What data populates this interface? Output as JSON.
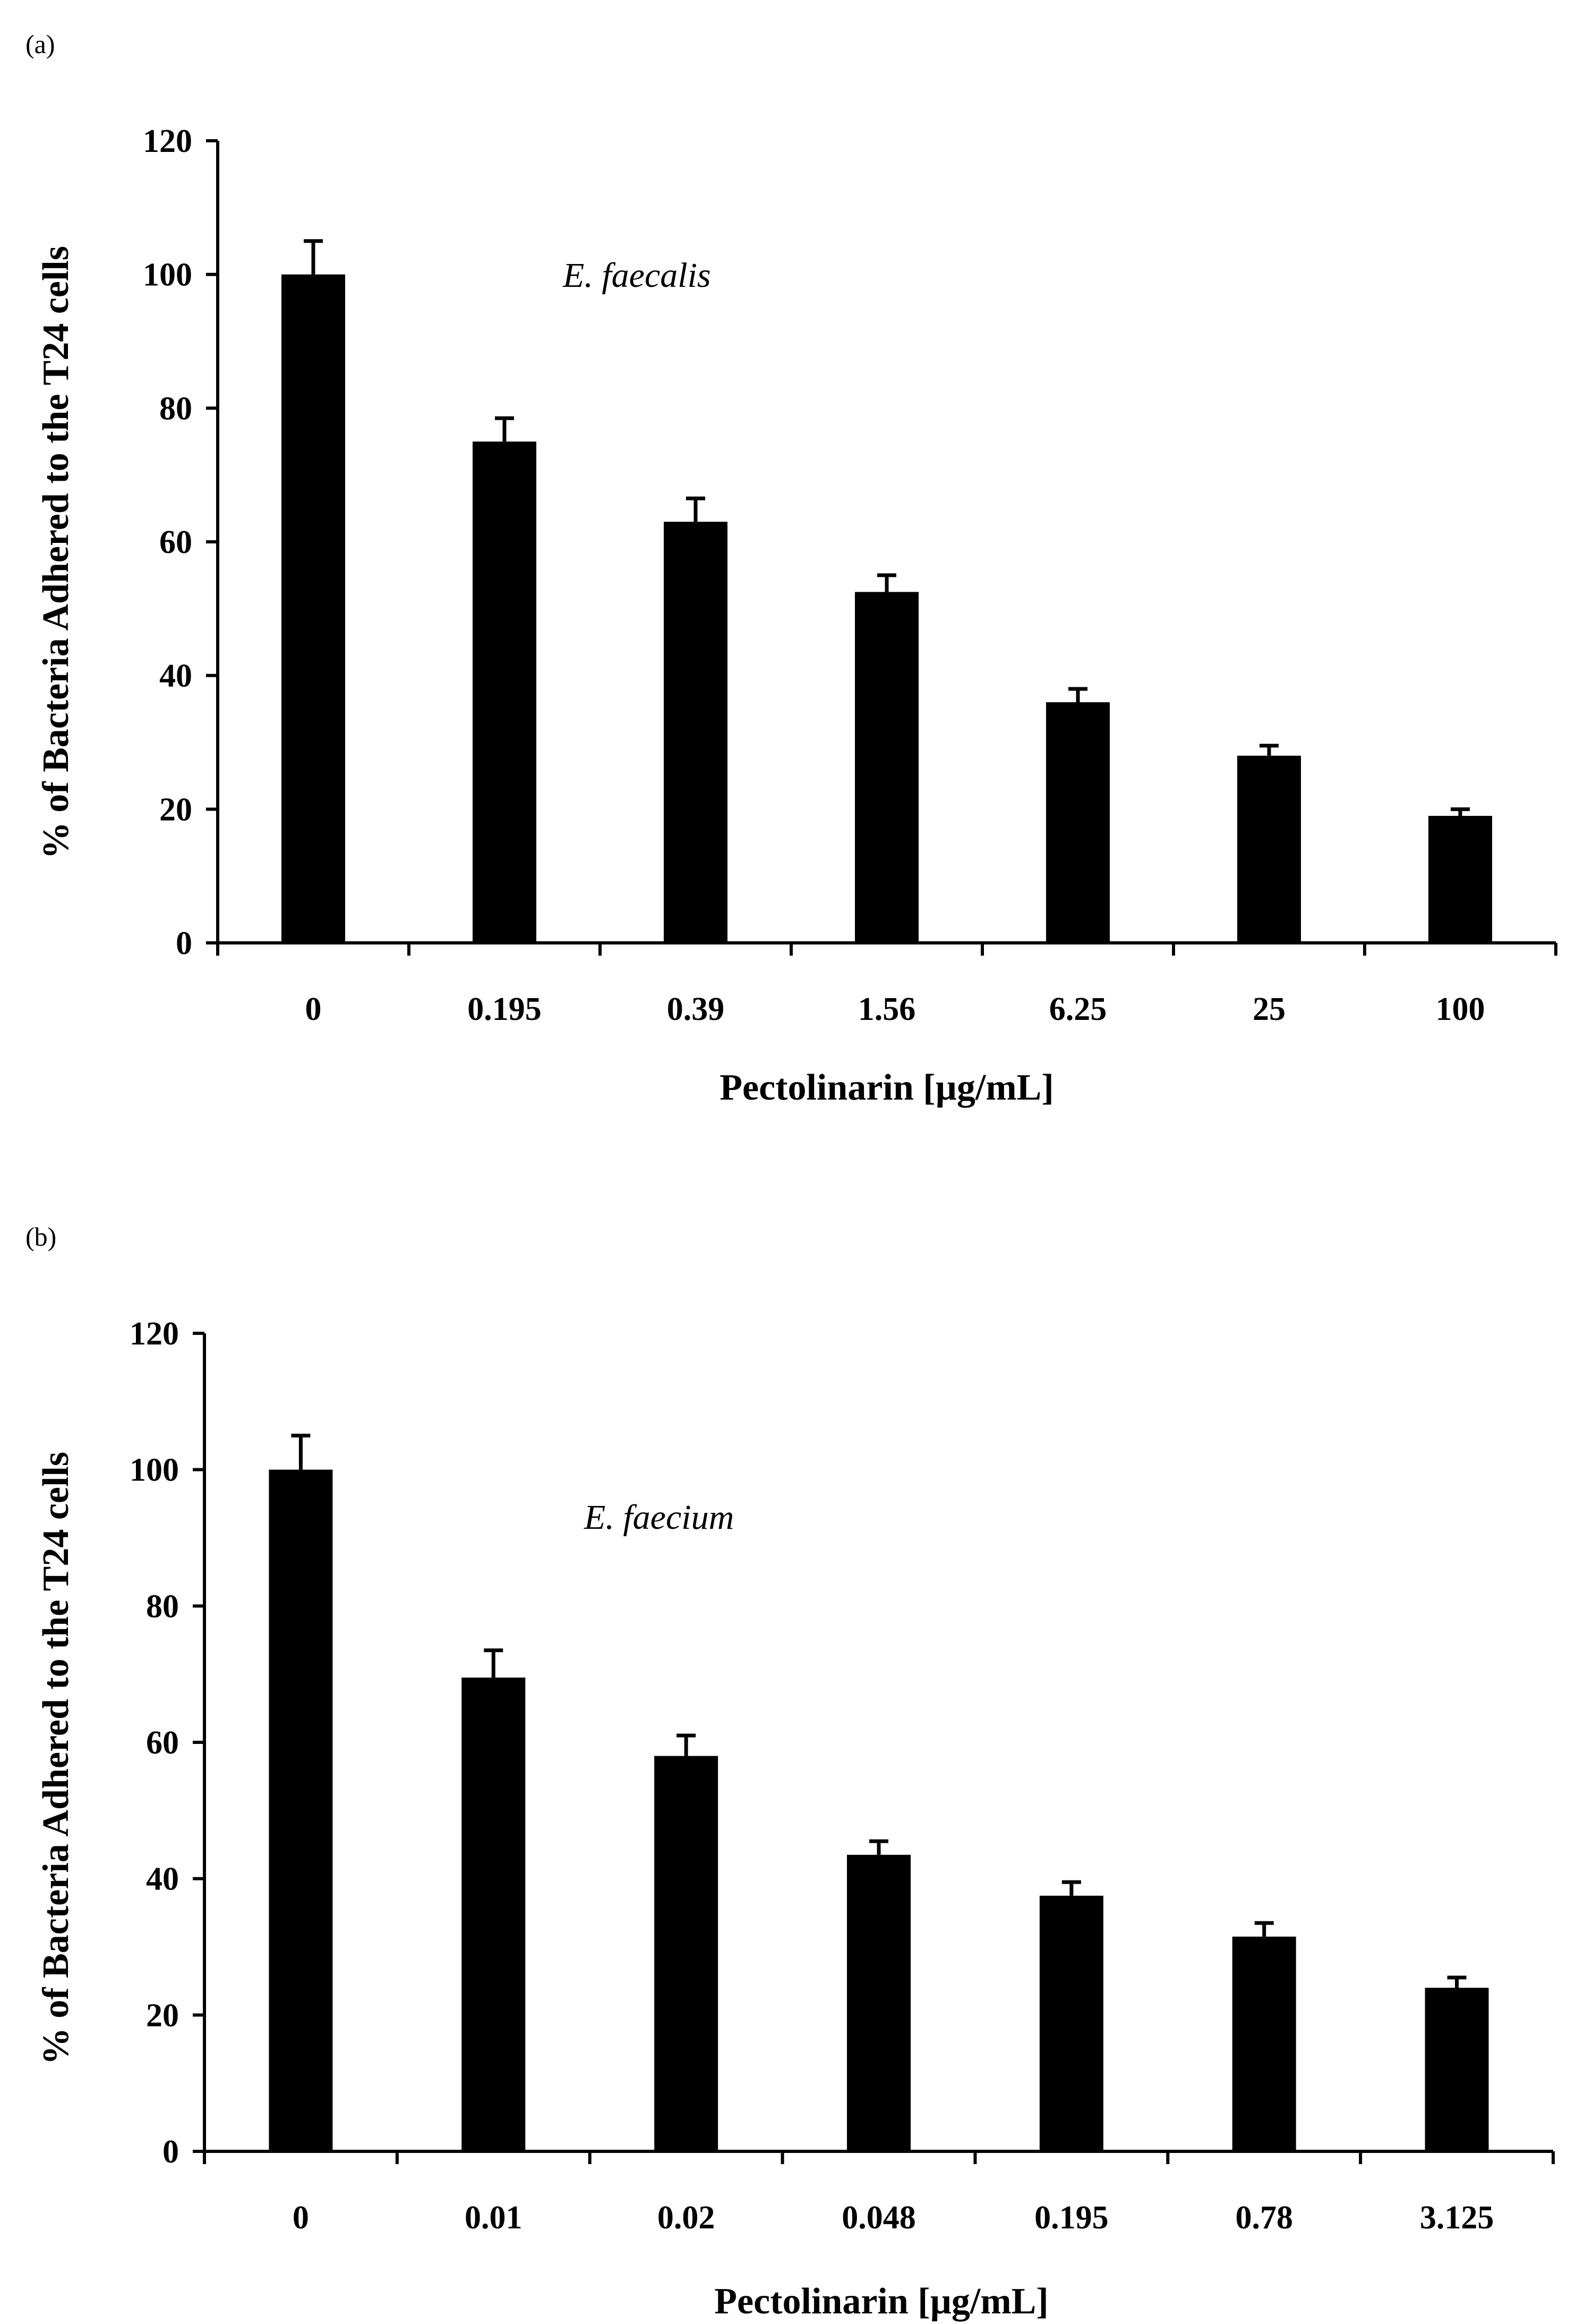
{
  "figure": {
    "panels": [
      "(a)",
      "(b)"
    ]
  },
  "chart_data": [
    {
      "type": "bar",
      "panel_label": "(a)",
      "title": "",
      "annotation": "E.  faecalis",
      "categories": [
        "0",
        "0.195",
        "0.39",
        "1.56",
        "6.25",
        "25",
        "100"
      ],
      "values": [
        100,
        75,
        63,
        52.5,
        36,
        28,
        19
      ],
      "errors": [
        5,
        3.5,
        3.5,
        2.5,
        2,
        1.5,
        1
      ],
      "xlabel": "Pectolinarin [µg/mL]",
      "ylabel": "% of  Bacteria Adhered to the T24 cells",
      "ylim": [
        0,
        120
      ],
      "yticks": [
        0,
        20,
        40,
        60,
        80,
        100,
        120
      ],
      "color": "#000000"
    },
    {
      "type": "bar",
      "panel_label": "(b)",
      "title": "",
      "annotation": "E.  faecium",
      "categories": [
        "0",
        "0.01",
        "0.02",
        "0.048",
        "0.195",
        "0.78",
        "3.125"
      ],
      "values": [
        100,
        69.5,
        58,
        43.5,
        37.5,
        31.5,
        24
      ],
      "errors": [
        5,
        4,
        3,
        2,
        2,
        2,
        1.5
      ],
      "xlabel": "Pectolinarin [µg/mL]",
      "ylabel": "% of  Bacteria Adhered to the T24 cells",
      "ylim": [
        0,
        120
      ],
      "yticks": [
        0,
        20,
        40,
        60,
        80,
        100,
        120
      ],
      "color": "#000000"
    }
  ]
}
